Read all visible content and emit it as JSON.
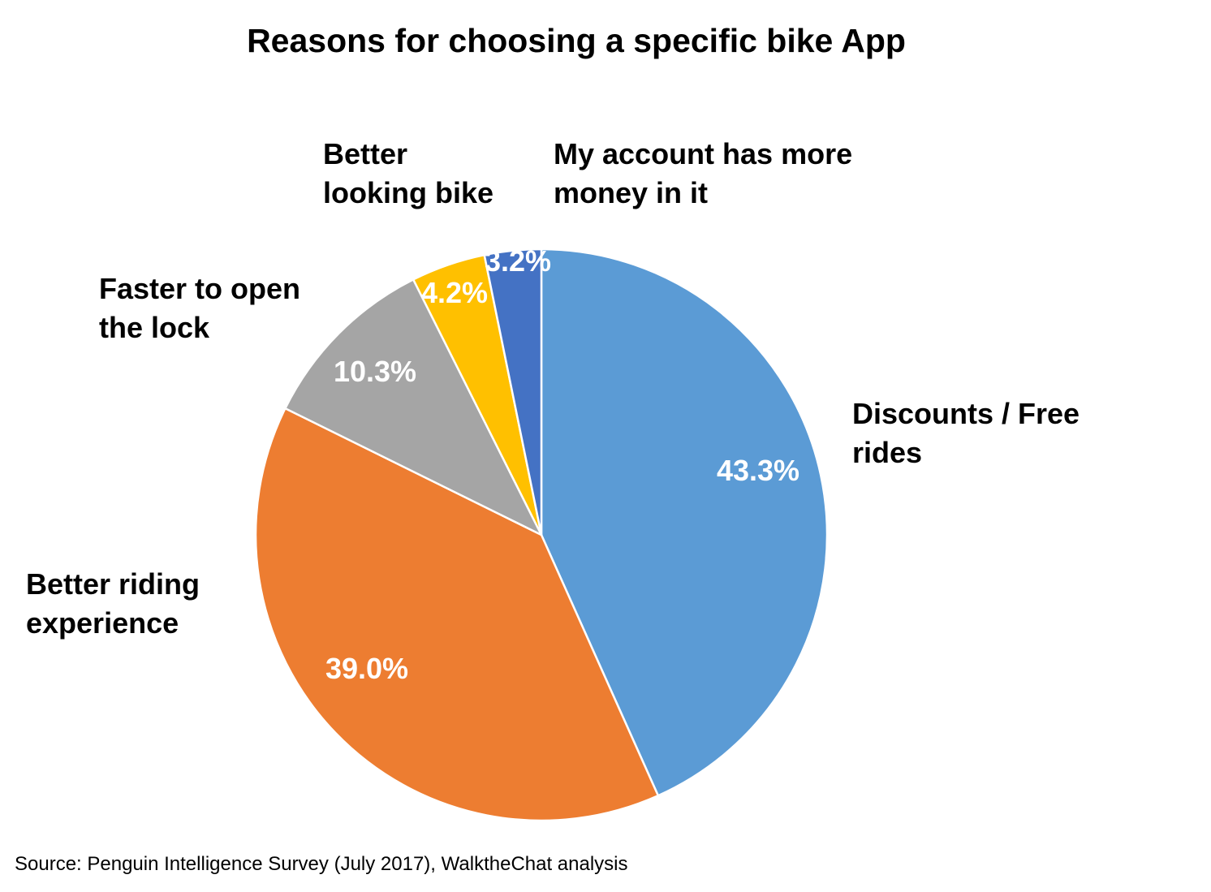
{
  "chart_data": {
    "type": "pie",
    "title": "Reasons for choosing a specific bike App",
    "source": "Source: Penguin Intelligence Survey (July 2017), WalktheChat analysis",
    "slices": [
      {
        "category_lines": [
          "Discounts / Free",
          "rides"
        ],
        "value": 43.3,
        "label": "43.3%",
        "color": "#5B9BD5"
      },
      {
        "category_lines": [
          "Better riding",
          "experience"
        ],
        "value": 39.0,
        "label": "39.0%",
        "color": "#ED7D31"
      },
      {
        "category_lines": [
          "Faster to open",
          "the lock"
        ],
        "value": 10.3,
        "label": "10.3%",
        "color": "#A5A5A5"
      },
      {
        "category_lines": [
          "Better",
          "looking bike"
        ],
        "value": 4.2,
        "label": "4.2%",
        "color": "#FFC000"
      },
      {
        "category_lines": [
          "My account has more",
          "money in it"
        ],
        "value": 3.2,
        "label": "3.2%",
        "color": "#4472C4"
      }
    ]
  }
}
